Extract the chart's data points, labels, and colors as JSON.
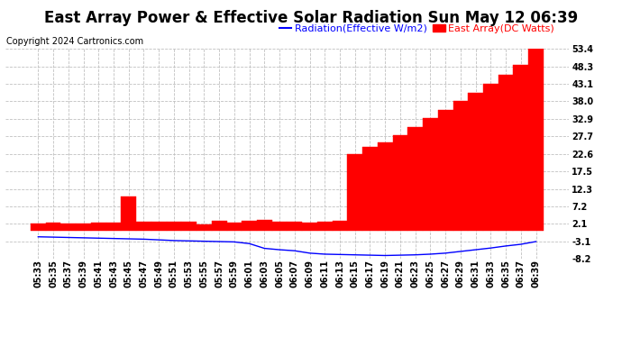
{
  "title": "East Array Power & Effective Solar Radiation Sun May 12 06:39",
  "copyright": "Copyright 2024 Cartronics.com",
  "legend_radiation": "Radiation(Effective W/m2)",
  "legend_array": "East Array(DC Watts)",
  "background_color": "#ffffff",
  "plot_bg_color": "#ffffff",
  "grid_color": "#c0c0c0",
  "bar_color": "#ff0000",
  "line_color": "#0000ff",
  "x_labels": [
    "05:33",
    "05:35",
    "05:37",
    "05:39",
    "05:41",
    "05:43",
    "05:45",
    "05:47",
    "05:49",
    "05:51",
    "05:53",
    "05:55",
    "05:57",
    "05:59",
    "06:01",
    "06:03",
    "06:05",
    "06:07",
    "06:09",
    "06:11",
    "06:13",
    "06:15",
    "06:17",
    "06:19",
    "06:21",
    "06:23",
    "06:25",
    "06:27",
    "06:29",
    "06:31",
    "06:33",
    "06:35",
    "06:37",
    "06:39"
  ],
  "bar_values": [
    2.1,
    2.3,
    2.1,
    2.2,
    2.3,
    2.4,
    10.0,
    2.5,
    2.5,
    2.6,
    2.7,
    1.8,
    2.8,
    2.4,
    3.0,
    3.1,
    2.6,
    2.7,
    2.4,
    2.7,
    3.0,
    22.6,
    24.5,
    26.0,
    28.0,
    30.5,
    33.0,
    35.5,
    38.0,
    40.5,
    43.1,
    45.8,
    48.8,
    53.4
  ],
  "line_values": [
    -1.8,
    -1.9,
    -2.0,
    -2.1,
    -2.2,
    -2.3,
    -2.4,
    -2.5,
    -2.7,
    -2.9,
    -3.0,
    -3.1,
    -3.2,
    -3.3,
    -3.8,
    -5.2,
    -5.6,
    -5.9,
    -6.6,
    -6.9,
    -7.0,
    -7.1,
    -7.2,
    -7.3,
    -7.2,
    -7.1,
    -6.9,
    -6.6,
    -6.1,
    -5.6,
    -5.1,
    -4.5,
    -4.0,
    -3.2
  ],
  "ylim": [
    -8.2,
    53.4
  ],
  "yticks": [
    53.4,
    48.3,
    43.1,
    38.0,
    32.9,
    27.7,
    22.6,
    17.5,
    12.3,
    7.2,
    2.1,
    -3.1,
    -8.2
  ],
  "title_fontsize": 12,
  "tick_fontsize": 7,
  "copyright_fontsize": 7,
  "legend_fontsize": 8
}
